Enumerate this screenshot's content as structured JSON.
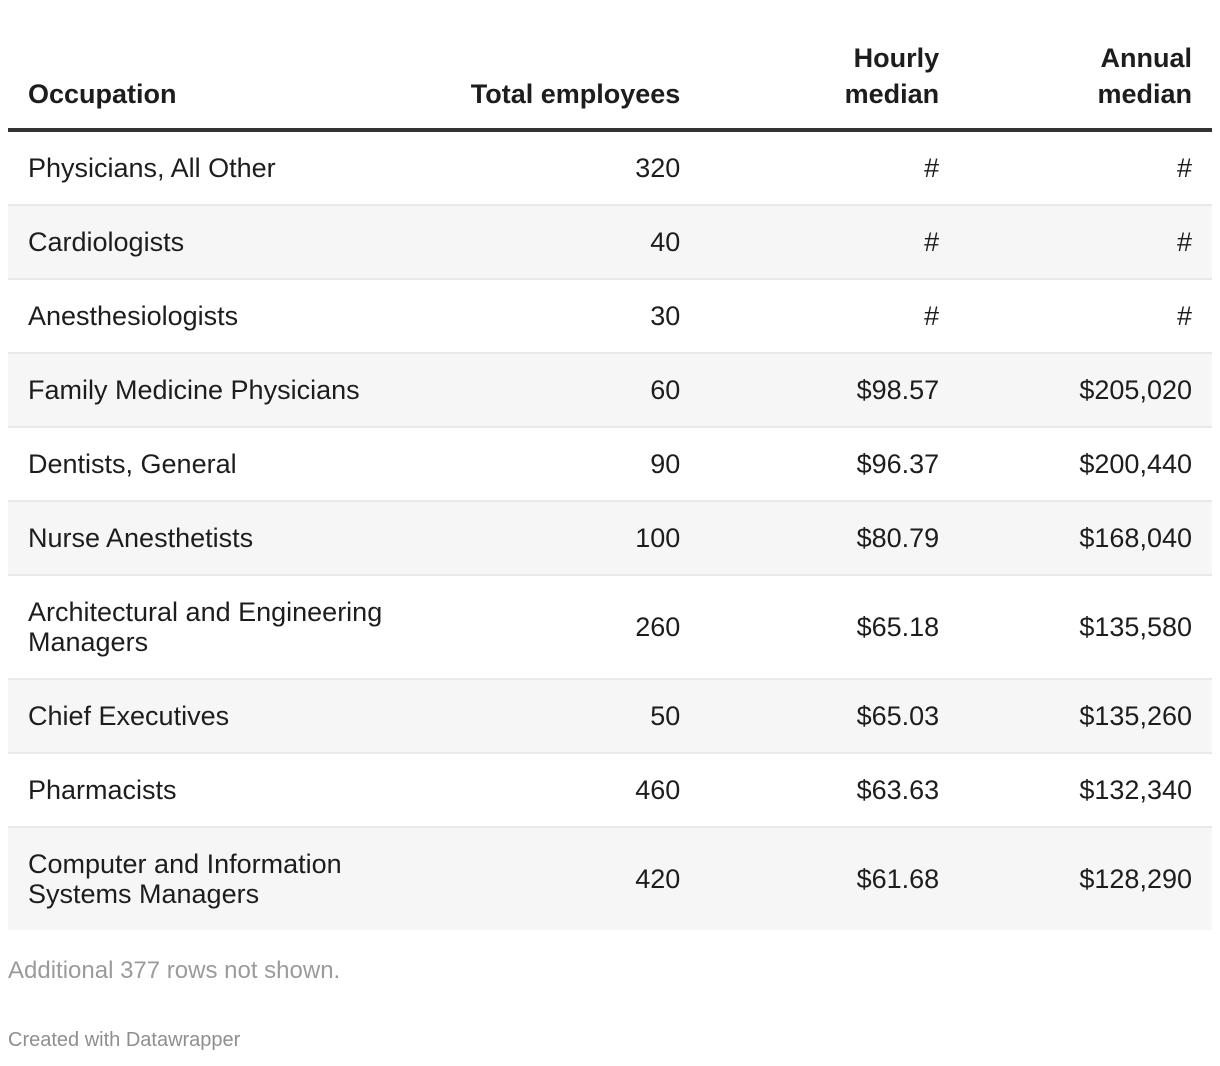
{
  "chart_data": {
    "type": "table",
    "columns": [
      "Occupation",
      "Total employees",
      "Hourly median",
      "Annual median"
    ],
    "rows": [
      [
        "Physicians, All Other",
        "320",
        "#",
        "#"
      ],
      [
        "Cardiologists",
        "40",
        "#",
        "#"
      ],
      [
        "Anesthesiologists",
        "30",
        "#",
        "#"
      ],
      [
        "Family Medicine Physicians",
        "60",
        "$98.57",
        "$205,020"
      ],
      [
        "Dentists, General",
        "90",
        "$96.37",
        "$200,440"
      ],
      [
        "Nurse Anesthetists",
        "100",
        "$80.79",
        "$168,040"
      ],
      [
        "Architectural and Engineering Managers",
        "260",
        "$65.18",
        "$135,580"
      ],
      [
        "Chief Executives",
        "50",
        "$65.03",
        "$135,260"
      ],
      [
        "Pharmacists",
        "460",
        "$63.63",
        "$132,340"
      ],
      [
        "Computer and Information Systems Managers",
        "420",
        "$61.68",
        "$128,290"
      ]
    ],
    "note": "Additional 377 rows not shown.",
    "credit": "Created with Datawrapper",
    "layout_hints": {
      "striped_rows": true,
      "numeric_columns_right_aligned": true
    }
  },
  "header_display": {
    "occupation": "Occupation",
    "total": "Total employees",
    "hourly": "Hourly\nmedian",
    "annual": "Annual\nmedian"
  },
  "colors": {
    "text": "#1d1d1d",
    "header_rule": "#333333",
    "row_stripe": "#f6f6f6",
    "row_divider": "#e9e9e9",
    "muted_text": "#9b9b9b"
  }
}
